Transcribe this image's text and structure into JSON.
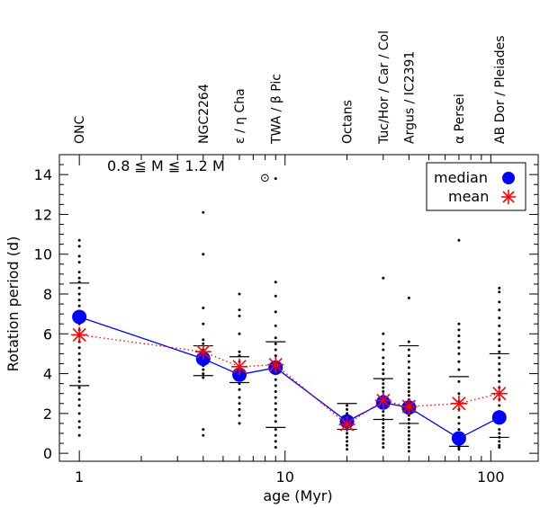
{
  "chart_data": {
    "type": "scatter",
    "xscale": "log",
    "xlim": [
      0.8,
      170
    ],
    "ylim": [
      -0.4,
      15
    ],
    "xlabel": "age (Myr)",
    "ylabel": "Rotation period (d)",
    "mass_range_label": "0.8 ≦ M ≦ 1.2 M",
    "mass_sun_symbol": "⊙",
    "x_ticks": [
      {
        "value": 1,
        "label": "1"
      },
      {
        "value": 10,
        "label": "10"
      },
      {
        "value": 100,
        "label": "100"
      }
    ],
    "y_ticks": [
      {
        "value": 0,
        "label": "0"
      },
      {
        "value": 2,
        "label": "2"
      },
      {
        "value": 4,
        "label": "4"
      },
      {
        "value": 6,
        "label": "6"
      },
      {
        "value": 8,
        "label": "8"
      },
      {
        "value": 10,
        "label": "10"
      },
      {
        "value": 12,
        "label": "12"
      },
      {
        "value": 14,
        "label": "14"
      }
    ],
    "legend": [
      {
        "name": "median",
        "marker": "circle",
        "color": "#0000ff"
      },
      {
        "name": "mean",
        "marker": "asterisk",
        "color": "#ff0000"
      }
    ],
    "clusters": [
      {
        "name": "ONC",
        "age": 1,
        "median": 6.85,
        "mean": 5.95,
        "q_low": 3.4,
        "q_high": 8.55,
        "points": [
          10.7,
          10.4,
          9.9,
          9.6,
          9.1,
          8.8,
          8.6,
          8.3,
          8.0,
          7.7,
          7.4,
          7.1,
          6.8,
          6.5,
          6.2,
          5.9,
          5.6,
          5.3,
          5.0,
          4.7,
          4.4,
          4.1,
          3.8,
          3.6,
          3.3,
          3.0,
          2.7,
          2.4,
          2.0,
          1.6,
          1.3,
          0.9
        ]
      },
      {
        "name": "NGC2264",
        "age": 4,
        "median": 4.75,
        "mean": 5.1,
        "q_low": 3.9,
        "q_high": 5.4,
        "points": [
          12.1,
          10.0,
          7.3,
          6.5,
          5.7,
          5.5,
          5.2,
          5.0,
          4.8,
          4.6,
          4.4,
          4.2,
          4.0,
          3.8,
          1.2,
          0.9
        ]
      },
      {
        "name": "ε / η Cha",
        "age": 6,
        "median": 3.95,
        "mean": 4.35,
        "q_low": 3.55,
        "q_high": 4.85,
        "points": [
          8.0,
          7.2,
          6.9,
          6.0,
          5.1,
          4.9,
          4.6,
          4.3,
          4.1,
          3.8,
          3.5,
          3.2,
          2.8,
          2.5,
          2.2,
          1.9,
          1.5
        ]
      },
      {
        "name": "TWA / β Pic",
        "age": 9,
        "median": 4.3,
        "mean": 4.45,
        "q_low": 1.3,
        "q_high": 5.6,
        "points": [
          13.8,
          8.6,
          7.9,
          7.1,
          6.4,
          5.8,
          5.5,
          5.2,
          4.9,
          4.6,
          4.3,
          4.0,
          3.7,
          3.4,
          3.1,
          2.8,
          2.5,
          2.2,
          1.9,
          1.6,
          1.2,
          0.9,
          0.6,
          0.3
        ]
      },
      {
        "name": "Octans",
        "age": 20,
        "median": 1.6,
        "mean": 1.45,
        "q_low": 1.2,
        "q_high": 2.5,
        "points": [
          2.4,
          2.2,
          2.0,
          1.8,
          1.7,
          1.5,
          1.4,
          1.2,
          1.0,
          0.8,
          0.6,
          0.4,
          0.2
        ]
      },
      {
        "name": "Tuc/Hor / Car / Col",
        "age": 30,
        "median": 2.55,
        "mean": 2.65,
        "q_low": 1.7,
        "q_high": 3.75,
        "points": [
          8.8,
          6.0,
          5.5,
          5.2,
          4.8,
          4.5,
          4.2,
          4.0,
          3.7,
          3.5,
          3.3,
          3.1,
          2.9,
          2.7,
          2.5,
          2.3,
          2.1,
          1.9,
          1.7,
          1.5,
          1.3,
          1.1,
          0.9,
          0.7,
          0.5,
          0.3
        ]
      },
      {
        "name": "Argus / IC2391",
        "age": 40,
        "median": 2.3,
        "mean": 2.35,
        "q_low": 1.5,
        "q_high": 5.4,
        "points": [
          7.8,
          5.6,
          5.2,
          4.9,
          4.6,
          4.3,
          4.0,
          3.7,
          3.5,
          3.3,
          3.1,
          2.9,
          2.7,
          2.5,
          2.3,
          2.1,
          1.9,
          1.7,
          1.5,
          1.3,
          1.1,
          0.9,
          0.7,
          0.5,
          0.3,
          0.1
        ]
      },
      {
        "name": "α Persei",
        "age": 70,
        "median": 0.75,
        "mean": 2.5,
        "q_low": 0.35,
        "q_high": 3.85,
        "points": [
          10.7,
          6.5,
          6.2,
          5.9,
          5.6,
          5.3,
          5.0,
          4.6,
          4.2,
          3.6,
          3.0,
          2.6,
          2.2,
          1.8,
          1.5,
          1.2,
          1.0,
          0.8,
          0.6,
          0.5,
          0.4,
          0.3,
          0.2
        ]
      },
      {
        "name": "AB Dor / Pleiades",
        "age": 110,
        "median": 1.8,
        "mean": 3.0,
        "q_low": 0.8,
        "q_high": 5.0,
        "points": [
          8.3,
          8.1,
          7.6,
          7.2,
          6.8,
          6.4,
          6.0,
          5.7,
          5.4,
          5.1,
          4.8,
          4.5,
          4.2,
          3.9,
          3.6,
          3.3,
          3.0,
          2.7,
          2.4,
          2.1,
          1.8,
          1.5,
          1.2,
          1.0,
          0.8,
          0.6,
          0.4,
          0.3
        ]
      }
    ]
  }
}
